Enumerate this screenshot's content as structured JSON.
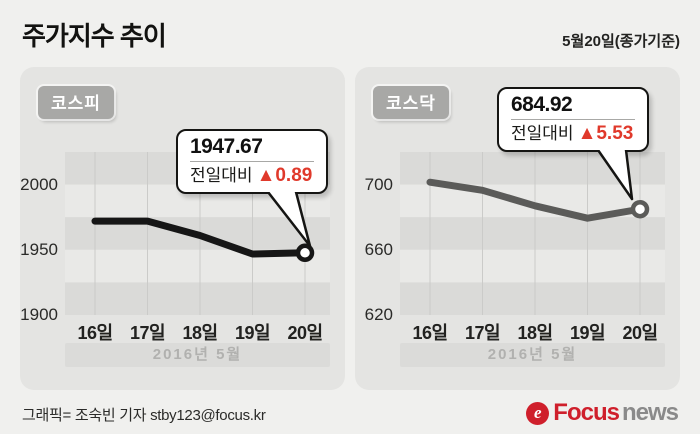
{
  "header": {
    "title": "주가지수 추이",
    "date_note": "5월20일(종가기준)"
  },
  "colors": {
    "page_bg": "#f0f0ee",
    "panel_bg": "#e4e4e2",
    "band_dark": "#dadad8",
    "band_light": "#e9e9e7",
    "gridline": "#cbcbc9",
    "badge_bg": "#a8a8a6",
    "delta_red": "#e0392b",
    "logo_red": "#cf1f2b",
    "logo_gray": "#8a8a8a"
  },
  "chart_data": [
    {
      "type": "line",
      "badge": "코스피",
      "x": [
        "16일",
        "17일",
        "18일",
        "19일",
        "20일"
      ],
      "values": [
        1972,
        1972,
        1961,
        1946.78,
        1947.67
      ],
      "ylim": [
        1900,
        2025
      ],
      "yticks": [
        2000,
        1950,
        1900
      ],
      "xlabel_band": "2016년 5월",
      "line_color": "#161616",
      "grid": "horizontal-bands",
      "legend": "none",
      "callout": {
        "value": "1947.67",
        "label": "전일대비",
        "delta": "▲0.89",
        "delta_color": "#e0392b"
      }
    },
    {
      "type": "line",
      "badge": "코스닥",
      "x": [
        "16일",
        "17일",
        "18일",
        "19일",
        "20일"
      ],
      "values": [
        701.5,
        696.5,
        687,
        679.39,
        684.92
      ],
      "ylim": [
        620,
        720
      ],
      "yticks": [
        700,
        660,
        620
      ],
      "xlabel_band": "2016년 5월",
      "line_color": "#5b5b59",
      "grid": "horizontal-bands",
      "legend": "none",
      "callout": {
        "value": "684.92",
        "label": "전일대비",
        "delta": "▲5.53",
        "delta_color": "#e0392b"
      }
    }
  ],
  "footer": {
    "credit": "그래픽= 조숙빈 기자 stby123@focus.kr",
    "logo": {
      "icon": "focus-swirl-icon",
      "icon_glyph": "e",
      "brand": "Focus",
      "suffix": "news"
    }
  }
}
